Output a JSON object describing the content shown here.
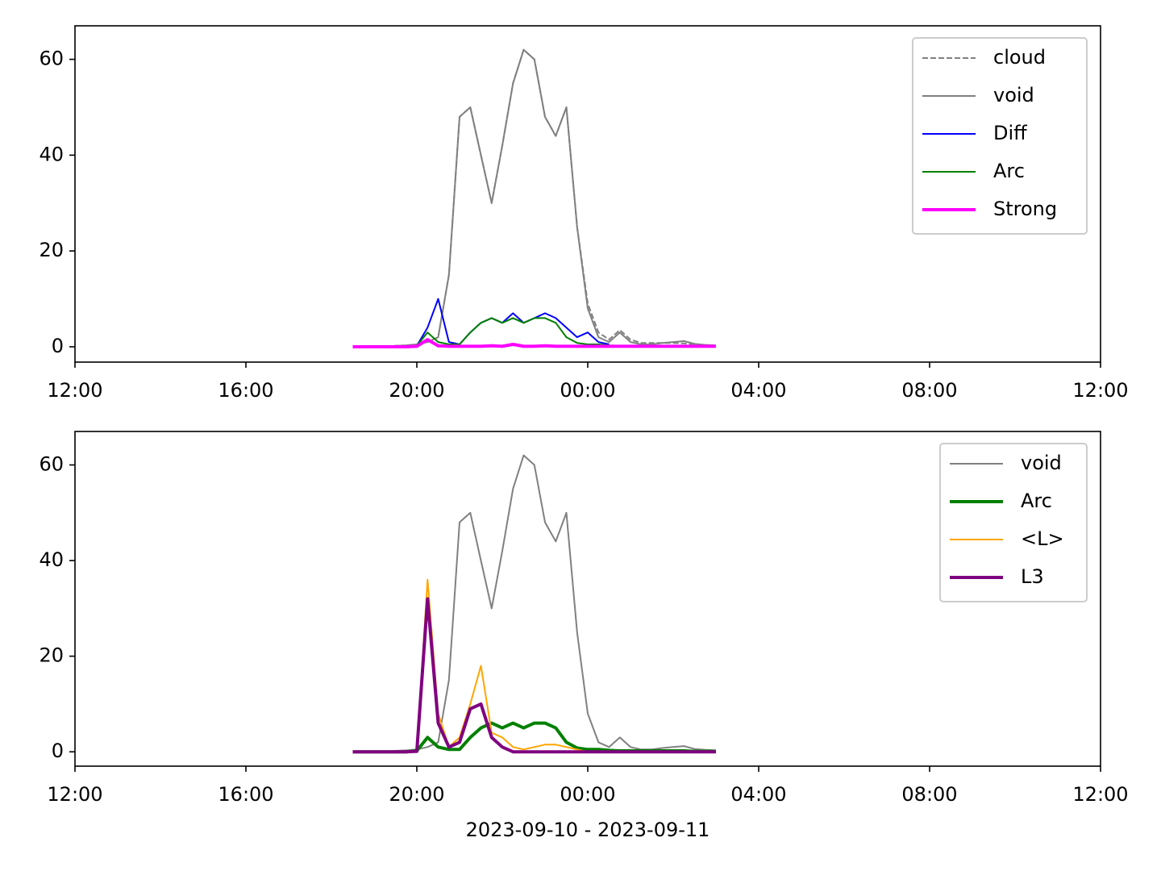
{
  "chart_data": [
    {
      "type": "line",
      "xlim": [
        0,
        24
      ],
      "xticks": [
        {
          "value": 0,
          "label": "12:00"
        },
        {
          "value": 4,
          "label": "16:00"
        },
        {
          "value": 8,
          "label": "20:00"
        },
        {
          "value": 12,
          "label": "00:00"
        },
        {
          "value": 16,
          "label": "04:00"
        },
        {
          "value": 20,
          "label": "08:00"
        },
        {
          "value": 24,
          "label": "12:00"
        }
      ],
      "ylim": [
        -3.2,
        67
      ],
      "yticks": [
        0,
        20,
        40,
        60
      ],
      "legend": "upper right",
      "x": [
        6.5,
        6.75,
        7,
        7.25,
        7.5,
        7.75,
        8,
        8.25,
        8.5,
        8.75,
        9,
        9.25,
        9.5,
        9.75,
        10,
        10.25,
        10.5,
        10.75,
        11,
        11.25,
        11.5,
        11.75,
        12,
        12.25,
        12.5,
        12.75,
        13,
        13.25,
        13.5,
        13.75,
        14,
        14.25,
        14.5,
        14.75,
        15
      ],
      "series": [
        {
          "name": "cloud",
          "color": "#808080",
          "linestyle": "dashed",
          "linewidth": 2,
          "values": [
            0,
            0,
            0,
            0,
            0.2,
            0.3,
            0.5,
            1,
            2,
            15,
            48,
            50,
            40,
            30,
            42,
            55,
            62,
            60,
            48,
            44,
            50,
            25,
            9,
            3,
            1.5,
            3.5,
            1.5,
            0.8,
            0.8,
            0.8,
            0.8,
            0.7,
            0.5,
            0.3,
            0.2
          ]
        },
        {
          "name": "void",
          "color": "#808080",
          "linestyle": "solid",
          "linewidth": 2,
          "values": [
            0,
            0,
            0,
            0,
            0.2,
            0.3,
            0.5,
            1,
            2,
            15,
            48,
            50,
            40,
            30,
            42,
            55,
            62,
            60,
            48,
            44,
            50,
            25,
            8,
            2,
            1,
            3,
            1,
            0.5,
            0.5,
            0.8,
            1,
            1.2,
            0.6,
            0.4,
            0.3
          ]
        },
        {
          "name": "Diff",
          "color": "#0000ff",
          "linestyle": "solid",
          "linewidth": 2,
          "values": [
            0,
            0,
            0,
            0,
            0,
            0,
            0.2,
            4,
            10,
            1,
            0.5,
            3,
            5,
            6,
            5,
            7,
            5,
            6,
            7,
            6,
            4,
            2,
            3,
            1,
            0.5,
            null,
            null,
            null,
            null,
            null,
            null,
            null,
            null,
            null,
            null
          ]
        },
        {
          "name": "Arc",
          "color": "#008000",
          "linestyle": "solid",
          "linewidth": 2,
          "values": [
            0,
            0,
            0,
            0,
            0,
            0,
            0.2,
            3,
            1,
            0.5,
            0.5,
            3,
            5,
            6,
            5,
            6,
            5,
            6,
            6,
            5,
            2,
            0.8,
            0.5,
            0.5,
            0.3,
            0.2,
            0.2,
            0.2,
            0.2,
            0.2,
            0.2,
            0.2,
            0.1,
            0.1,
            0.1
          ]
        },
        {
          "name": "Strong",
          "color": "#ff00ff",
          "linestyle": "solid",
          "linewidth": 4,
          "values": [
            0,
            0,
            0,
            0,
            0,
            0,
            0.1,
            1.5,
            0.2,
            0.1,
            0.1,
            0.1,
            0.1,
            0.2,
            0.1,
            0.5,
            0.1,
            0.1,
            0.2,
            0.1,
            0.1,
            0.1,
            0.1,
            0.1,
            0.1,
            0.1,
            0.1,
            0.1,
            0.1,
            0.1,
            0.1,
            0.1,
            0.1,
            0.1,
            0.1
          ]
        }
      ]
    },
    {
      "type": "line",
      "xlim": [
        0,
        24
      ],
      "xticks": [
        {
          "value": 0,
          "label": "12:00"
        },
        {
          "value": 4,
          "label": "16:00"
        },
        {
          "value": 8,
          "label": "20:00"
        },
        {
          "value": 12,
          "label": "00:00"
        },
        {
          "value": 16,
          "label": "04:00"
        },
        {
          "value": 20,
          "label": "08:00"
        },
        {
          "value": 24,
          "label": "12:00"
        }
      ],
      "ylim": [
        -3.0,
        67
      ],
      "yticks": [
        0,
        20,
        40,
        60
      ],
      "legend": "upper right",
      "x_label": "2023-09-10 - 2023-09-11",
      "x": [
        6.5,
        6.75,
        7,
        7.25,
        7.5,
        7.75,
        8,
        8.25,
        8.5,
        8.75,
        9,
        9.25,
        9.5,
        9.75,
        10,
        10.25,
        10.5,
        10.75,
        11,
        11.25,
        11.5,
        11.75,
        12,
        12.25,
        12.5,
        12.75,
        13,
        13.25,
        13.5,
        13.75,
        14,
        14.25,
        14.5,
        14.75,
        15
      ],
      "series": [
        {
          "name": "void",
          "color": "#808080",
          "linestyle": "solid",
          "linewidth": 2,
          "values": [
            0,
            0,
            0,
            0,
            0.2,
            0.3,
            0.5,
            1,
            2,
            15,
            48,
            50,
            40,
            30,
            42,
            55,
            62,
            60,
            48,
            44,
            50,
            25,
            8,
            2,
            1,
            3,
            1,
            0.5,
            0.5,
            0.8,
            1,
            1.2,
            0.6,
            0.4,
            0.3
          ]
        },
        {
          "name": "Arc",
          "color": "#008000",
          "linestyle": "solid",
          "linewidth": 4,
          "values": [
            0,
            0,
            0,
            0,
            0,
            0,
            0.2,
            3,
            1,
            0.5,
            0.5,
            3,
            5,
            6,
            5,
            6,
            5,
            6,
            6,
            5,
            2,
            0.8,
            0.5,
            0.5,
            0.3,
            0.2,
            0.2,
            0.2,
            0.2,
            0.2,
            0.2,
            0.2,
            0.1,
            0.1,
            0.1
          ]
        },
        {
          "name": "<L>",
          "color": "#ffa500",
          "linestyle": "solid",
          "linewidth": 2,
          "values": [
            0,
            0,
            0,
            0,
            0,
            0,
            0.2,
            36,
            8,
            1,
            3,
            10,
            18,
            4,
            3,
            1,
            0.5,
            1,
            1.5,
            1.5,
            1,
            0.5,
            0,
            0,
            0,
            0,
            0,
            0,
            0,
            0,
            0,
            0,
            0,
            0,
            0
          ]
        },
        {
          "name": "L3",
          "color": "#800080",
          "linestyle": "solid",
          "linewidth": 4,
          "values": [
            0,
            0,
            0,
            0,
            0,
            0,
            0.1,
            32,
            6,
            1,
            2,
            9,
            10,
            3,
            1,
            0,
            0,
            0,
            0,
            0,
            0,
            0,
            0,
            0,
            0,
            0,
            0,
            0,
            0,
            0,
            0,
            0,
            0,
            0,
            0
          ]
        }
      ]
    }
  ]
}
